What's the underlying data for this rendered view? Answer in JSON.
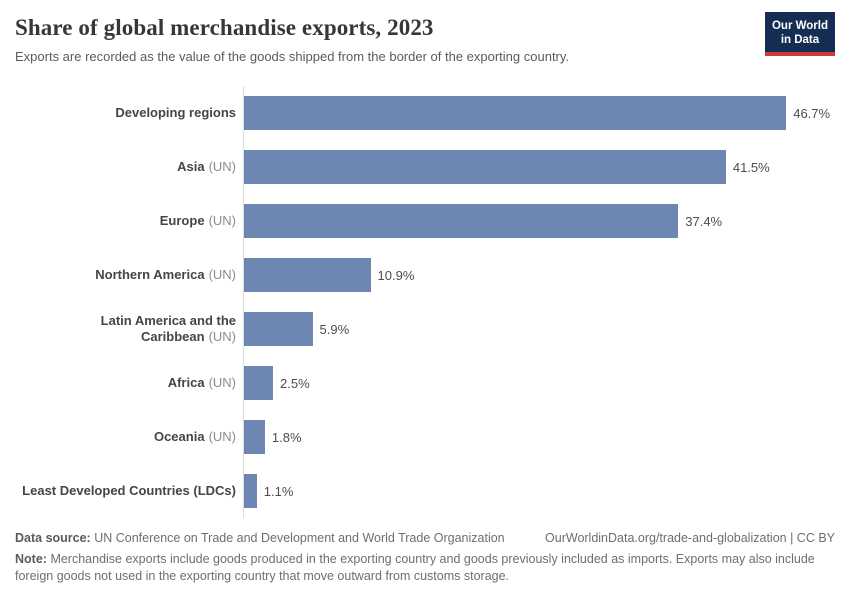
{
  "header": {
    "title": "Share of global merchandise exports, 2023",
    "subtitle": "Exports are recorded as the value of the goods shipped from the border of the exporting country.",
    "logo": {
      "line1": "Our World",
      "line2": "in Data",
      "bg_color": "#152d52",
      "accent_color": "#d1383d"
    }
  },
  "chart_data": {
    "type": "bar",
    "orientation": "horizontal",
    "title": "Share of global merchandise exports, 2023",
    "unit": "%",
    "xlim": [
      0,
      50.9
    ],
    "grid": false,
    "legend": "none",
    "bar_color": "#6d87b2",
    "categories": [
      "Developing regions",
      "Asia (UN)",
      "Europe (UN)",
      "Northern America (UN)",
      "Latin America and the Caribbean (UN)",
      "Africa (UN)",
      "Oceania (UN)",
      "Least Developed Countries (LDCs)"
    ],
    "values": [
      46.7,
      41.5,
      37.4,
      10.9,
      5.9,
      2.5,
      1.8,
      1.1
    ],
    "rows": [
      {
        "label": "Developing regions",
        "suffix": "",
        "value": 46.7,
        "display": "46.7%"
      },
      {
        "label": "Asia",
        "suffix": "(UN)",
        "value": 41.5,
        "display": "41.5%"
      },
      {
        "label": "Europe",
        "suffix": "(UN)",
        "value": 37.4,
        "display": "37.4%"
      },
      {
        "label": "Northern America",
        "suffix": "(UN)",
        "value": 10.9,
        "display": "10.9%"
      },
      {
        "label": "Latin America and the Caribbean",
        "suffix": "(UN)",
        "value": 5.9,
        "display": "5.9%"
      },
      {
        "label": "Africa",
        "suffix": "(UN)",
        "value": 2.5,
        "display": "2.5%"
      },
      {
        "label": "Oceania",
        "suffix": "(UN)",
        "value": 1.8,
        "display": "1.8%"
      },
      {
        "label": "Least Developed Countries (LDCs)",
        "suffix": "",
        "value": 1.1,
        "display": "1.1%"
      }
    ]
  },
  "footer": {
    "data_source_label": "Data source:",
    "data_source_text": "UN Conference on Trade and Development and World Trade Organization",
    "link_text": "OurWorldinData.org/trade-and-globalization | CC BY",
    "note_label": "Note:",
    "note_text": "Merchandise exports include goods produced in the exporting country and goods previously included as imports. Exports may also include foreign goods not used in the exporting country that move outward from customs storage."
  }
}
